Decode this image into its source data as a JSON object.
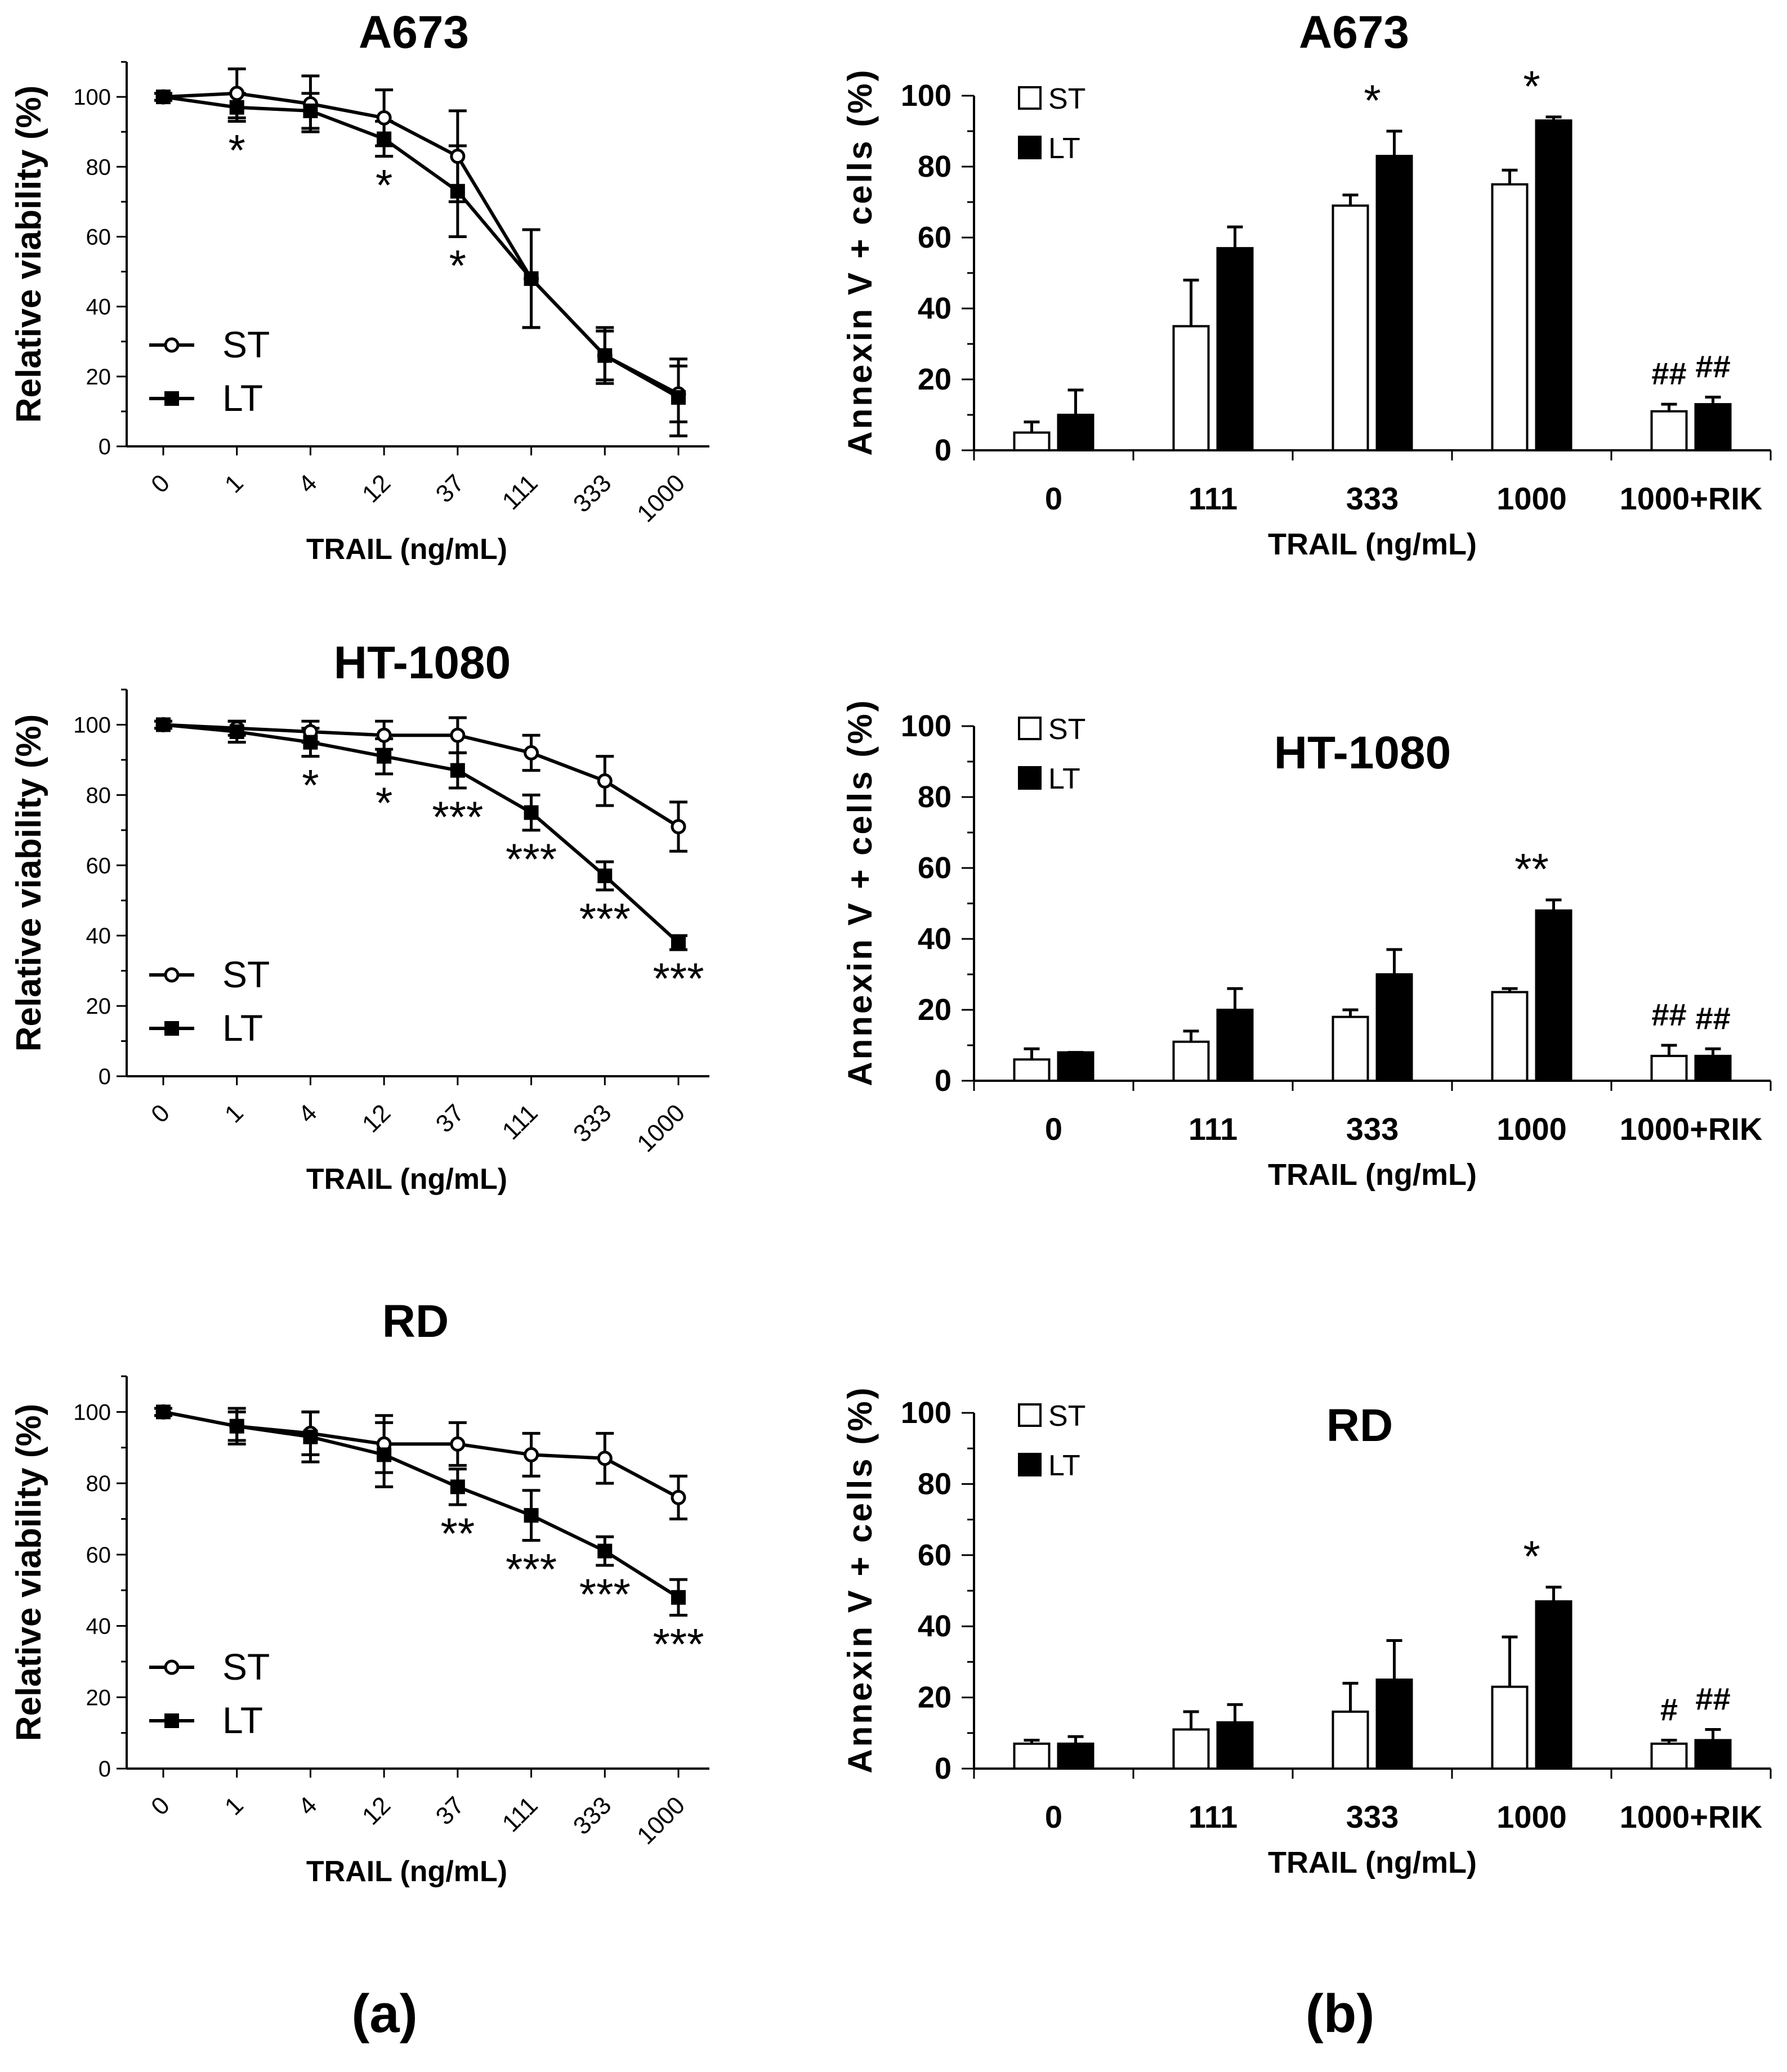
{
  "panel_labels": [
    "(a)",
    "(b)"
  ],
  "colors": {
    "ink": "#000000",
    "open_fill": "#ffffff",
    "closed_fill": "#000000"
  },
  "chart_data": [
    {
      "type": "line",
      "title": "A673",
      "xlabel": "TRAIL (ng/mL)",
      "ylabel": "Relative viability (%)",
      "categories": [
        "0",
        "1",
        "4",
        "12",
        "37",
        "111",
        "333",
        "1000"
      ],
      "yticks": [
        0,
        20,
        40,
        60,
        80,
        100
      ],
      "ylim": [
        0,
        110
      ],
      "legend": [
        "ST",
        "LT"
      ],
      "legend_position": "bottom-left",
      "series": [
        {
          "name": "ST",
          "marker": "open-circle",
          "values": [
            100,
            101,
            98,
            94,
            83,
            48,
            26,
            15
          ],
          "errors": [
            1,
            7,
            8,
            8,
            13,
            14,
            7,
            8
          ]
        },
        {
          "name": "LT",
          "marker": "filled-square",
          "values": [
            100,
            97,
            96,
            88,
            73,
            48,
            26,
            14
          ],
          "errors": [
            1,
            4,
            5,
            5,
            13,
            14,
            8,
            11
          ]
        }
      ],
      "annotations": [
        {
          "index": 1,
          "text": "*"
        },
        {
          "index": 3,
          "text": "*"
        },
        {
          "index": 4,
          "text": "*"
        }
      ]
    },
    {
      "type": "bar",
      "title": "A673",
      "xlabel": "TRAIL (ng/mL)",
      "ylabel": "Annexin V + cells (%)",
      "categories": [
        "0",
        "111",
        "333",
        "1000",
        "1000+RIK"
      ],
      "yticks": [
        0,
        20,
        40,
        60,
        80,
        100
      ],
      "ylim": [
        0,
        100
      ],
      "legend": [
        "ST",
        "LT"
      ],
      "legend_position": "top-left",
      "series": [
        {
          "name": "ST",
          "fill": "open",
          "values": [
            5,
            35,
            69,
            75,
            11
          ],
          "errors": [
            3,
            13,
            3,
            4,
            2
          ]
        },
        {
          "name": "LT",
          "fill": "filled",
          "values": [
            10,
            57,
            83,
            93,
            13
          ],
          "errors": [
            7,
            6,
            7,
            1,
            2
          ]
        }
      ],
      "annotations": [
        {
          "index": 2,
          "text": "*"
        },
        {
          "index": 3,
          "text": "*"
        },
        {
          "index": 4,
          "series": 0,
          "text": "##"
        },
        {
          "index": 4,
          "series": 1,
          "text": "##"
        }
      ]
    },
    {
      "type": "line",
      "title": "HT-1080",
      "xlabel": "TRAIL (ng/mL)",
      "ylabel": "Relative viability (%)",
      "categories": [
        "0",
        "1",
        "4",
        "12",
        "37",
        "111",
        "333",
        "1000"
      ],
      "yticks": [
        0,
        20,
        40,
        60,
        80,
        100
      ],
      "ylim": [
        0,
        110
      ],
      "legend": [
        "ST",
        "LT"
      ],
      "legend_position": "bottom-left",
      "series": [
        {
          "name": "ST",
          "marker": "open-circle",
          "values": [
            100,
            99,
            98,
            97,
            97,
            92,
            84,
            71
          ],
          "errors": [
            1,
            2,
            3,
            4,
            5,
            5,
            7,
            7
          ]
        },
        {
          "name": "LT",
          "marker": "filled-square",
          "values": [
            100,
            98,
            95,
            91,
            87,
            75,
            57,
            38
          ],
          "errors": [
            1,
            3,
            4,
            5,
            5,
            5,
            4,
            2
          ]
        }
      ],
      "annotations": [
        {
          "index": 2,
          "text": "*"
        },
        {
          "index": 3,
          "text": "*"
        },
        {
          "index": 4,
          "text": "***"
        },
        {
          "index": 5,
          "text": "***"
        },
        {
          "index": 6,
          "text": "***"
        },
        {
          "index": 7,
          "text": "***"
        }
      ]
    },
    {
      "type": "bar",
      "title": "HT-1080",
      "xlabel": "TRAIL (ng/mL)",
      "ylabel": "Annexin V + cells (%)",
      "categories": [
        "0",
        "111",
        "333",
        "1000",
        "1000+RIK"
      ],
      "yticks": [
        0,
        20,
        40,
        60,
        80,
        100
      ],
      "ylim": [
        0,
        100
      ],
      "legend": [
        "ST",
        "LT"
      ],
      "legend_position": "top-left",
      "series": [
        {
          "name": "ST",
          "fill": "open",
          "values": [
            6,
            11,
            18,
            25,
            7
          ],
          "errors": [
            3,
            3,
            2,
            1,
            3
          ]
        },
        {
          "name": "LT",
          "fill": "filled",
          "values": [
            8,
            20,
            30,
            48,
            7
          ],
          "errors": [
            0,
            6,
            7,
            3,
            2
          ]
        }
      ],
      "annotations": [
        {
          "index": 3,
          "text": "**"
        },
        {
          "index": 4,
          "series": 0,
          "text": "##"
        },
        {
          "index": 4,
          "series": 1,
          "text": "##"
        }
      ]
    },
    {
      "type": "line",
      "title": "RD",
      "xlabel": "TRAIL (ng/mL)",
      "ylabel": "Relative viability (%)",
      "categories": [
        "0",
        "1",
        "4",
        "12",
        "37",
        "111",
        "333",
        "1000"
      ],
      "yticks": [
        0,
        20,
        40,
        60,
        80,
        100
      ],
      "ylim": [
        0,
        110
      ],
      "legend": [
        "ST",
        "LT"
      ],
      "legend_position": "bottom-left",
      "series": [
        {
          "name": "ST",
          "marker": "open-circle",
          "values": [
            100,
            96,
            94,
            91,
            91,
            88,
            87,
            76
          ],
          "errors": [
            1,
            4,
            6,
            8,
            6,
            6,
            7,
            6
          ]
        },
        {
          "name": "LT",
          "marker": "filled-square",
          "values": [
            100,
            96,
            93,
            88,
            79,
            71,
            61,
            48
          ],
          "errors": [
            1,
            5,
            7,
            9,
            5,
            7,
            4,
            5
          ]
        }
      ],
      "annotations": [
        {
          "index": 4,
          "text": "**"
        },
        {
          "index": 5,
          "text": "***"
        },
        {
          "index": 6,
          "text": "***"
        },
        {
          "index": 7,
          "text": "***"
        }
      ]
    },
    {
      "type": "bar",
      "title": "RD",
      "xlabel": "TRAIL (ng/mL)",
      "ylabel": "Annexin V + cells (%)",
      "categories": [
        "0",
        "111",
        "333",
        "1000",
        "1000+RIK"
      ],
      "yticks": [
        0,
        20,
        40,
        60,
        80,
        100
      ],
      "ylim": [
        0,
        100
      ],
      "legend": [
        "ST",
        "LT"
      ],
      "legend_position": "top-left",
      "series": [
        {
          "name": "ST",
          "fill": "open",
          "values": [
            7,
            11,
            16,
            23,
            7
          ],
          "errors": [
            1,
            5,
            8,
            14,
            1
          ]
        },
        {
          "name": "LT",
          "fill": "filled",
          "values": [
            7,
            13,
            25,
            47,
            8
          ],
          "errors": [
            2,
            5,
            11,
            4,
            3
          ]
        }
      ],
      "annotations": [
        {
          "index": 3,
          "text": "*"
        },
        {
          "index": 4,
          "series": 0,
          "text": "#"
        },
        {
          "index": 4,
          "series": 1,
          "text": "##"
        }
      ]
    }
  ]
}
